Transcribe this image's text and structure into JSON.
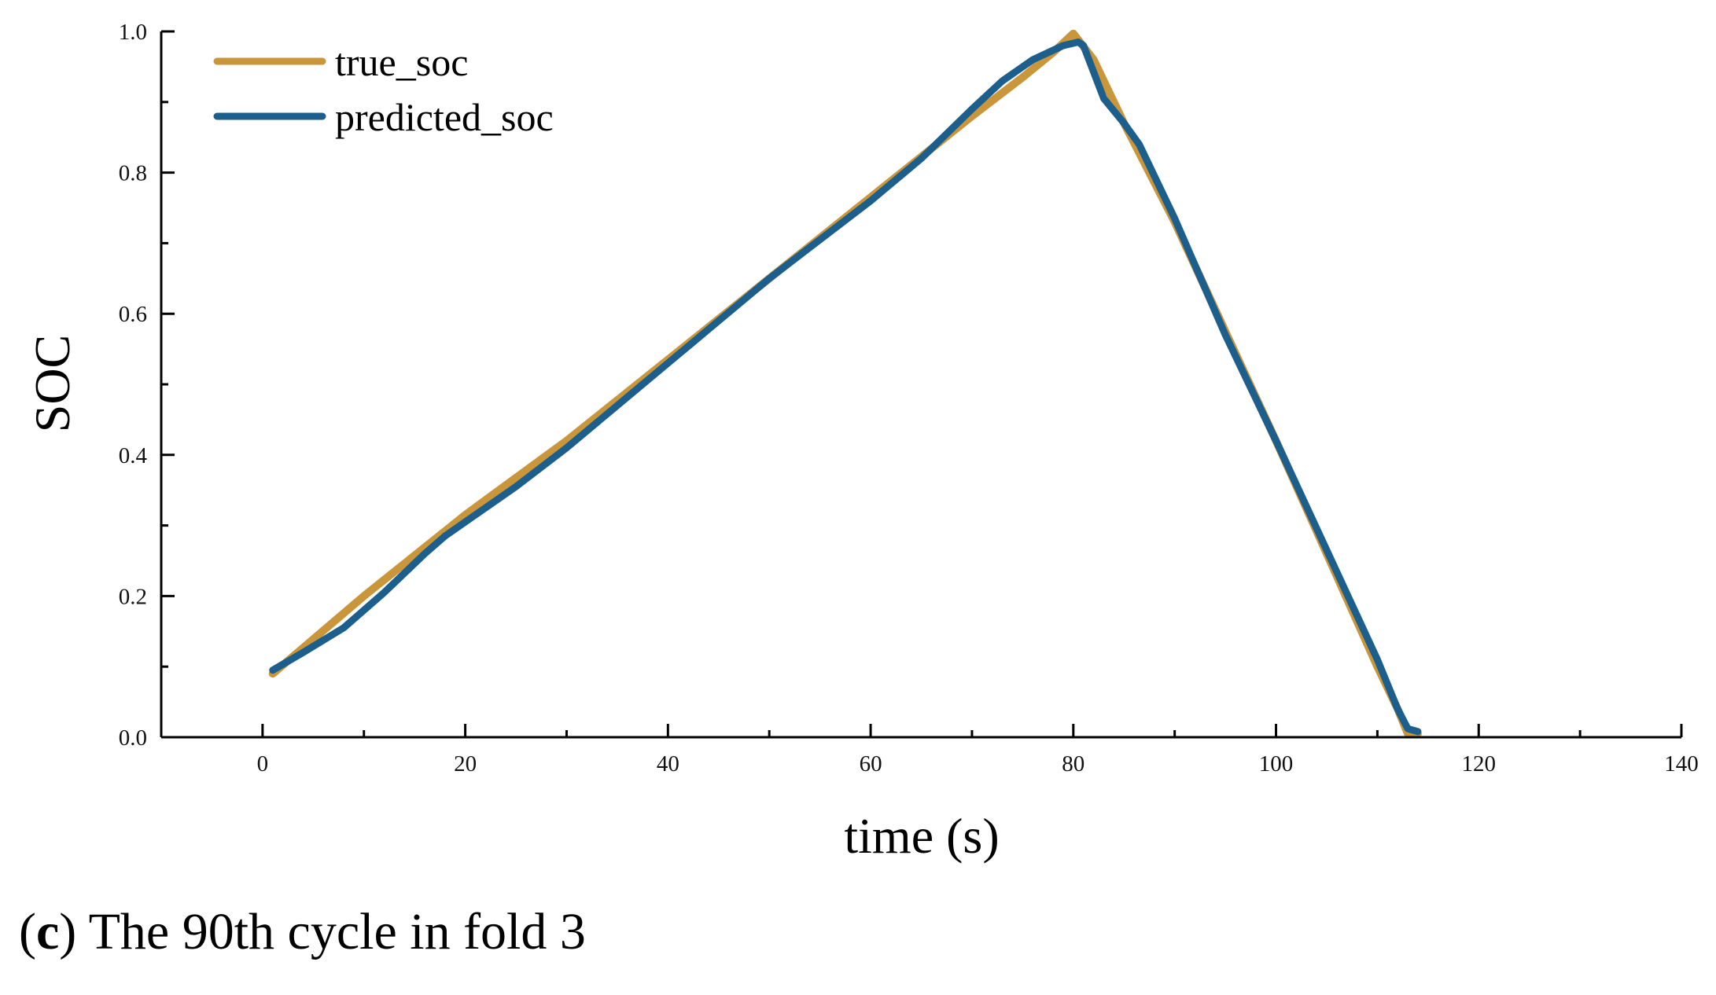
{
  "caption": {
    "label": "c",
    "text": "The 90th cycle in fold 3"
  },
  "colors": {
    "true_soc": "#C9963C",
    "predicted_soc": "#1C5F8C",
    "axis": "#000000"
  },
  "chart_data": {
    "type": "line",
    "title": "",
    "xlabel": "time (s)",
    "ylabel": "SOC",
    "xlim": [
      -10,
      140
    ],
    "ylim": [
      0,
      1.0
    ],
    "xticks": [
      0,
      20,
      40,
      60,
      80,
      100,
      120,
      140
    ],
    "xtick_labels": [
      "0",
      "20",
      "40",
      "60",
      "80",
      "100",
      "120",
      "140"
    ],
    "xminor": [
      -10,
      10,
      30,
      50,
      70,
      90,
      110,
      130
    ],
    "yticks": [
      0.0,
      0.2,
      0.4,
      0.6,
      0.8,
      1.0
    ],
    "ytick_labels": [
      "0.0",
      "0.2",
      "0.4",
      "0.6",
      "0.8",
      "1.0"
    ],
    "yminor": [
      0.1,
      0.3,
      0.5,
      0.7,
      0.9
    ],
    "grid": false,
    "legend_position": "top-left",
    "series": [
      {
        "name": "true_soc",
        "x": [
          1,
          10,
          20,
          30,
          40,
          50,
          60,
          70,
          75,
          78,
          80,
          82,
          85,
          90,
          95,
          100,
          105,
          110,
          112,
          113,
          114
        ],
        "y": [
          0.09,
          0.2,
          0.315,
          0.42,
          0.535,
          0.65,
          0.765,
          0.88,
          0.935,
          0.97,
          0.997,
          0.96,
          0.87,
          0.73,
          0.575,
          0.42,
          0.26,
          0.1,
          0.04,
          0.005,
          0.005
        ]
      },
      {
        "name": "predicted_soc",
        "x": [
          1,
          4,
          8,
          12,
          16,
          18,
          20,
          25,
          30,
          35,
          40,
          45,
          50,
          55,
          60,
          65,
          70,
          73,
          76,
          79,
          80.5,
          81,
          83,
          85,
          86.5,
          88,
          90,
          95,
          100,
          105,
          110,
          112,
          113,
          114
        ],
        "y": [
          0.095,
          0.12,
          0.155,
          0.205,
          0.26,
          0.285,
          0.305,
          0.355,
          0.41,
          0.47,
          0.53,
          0.59,
          0.65,
          0.705,
          0.76,
          0.82,
          0.89,
          0.93,
          0.96,
          0.98,
          0.985,
          0.98,
          0.905,
          0.87,
          0.84,
          0.795,
          0.735,
          0.57,
          0.42,
          0.265,
          0.11,
          0.04,
          0.012,
          0.008
        ]
      }
    ]
  }
}
